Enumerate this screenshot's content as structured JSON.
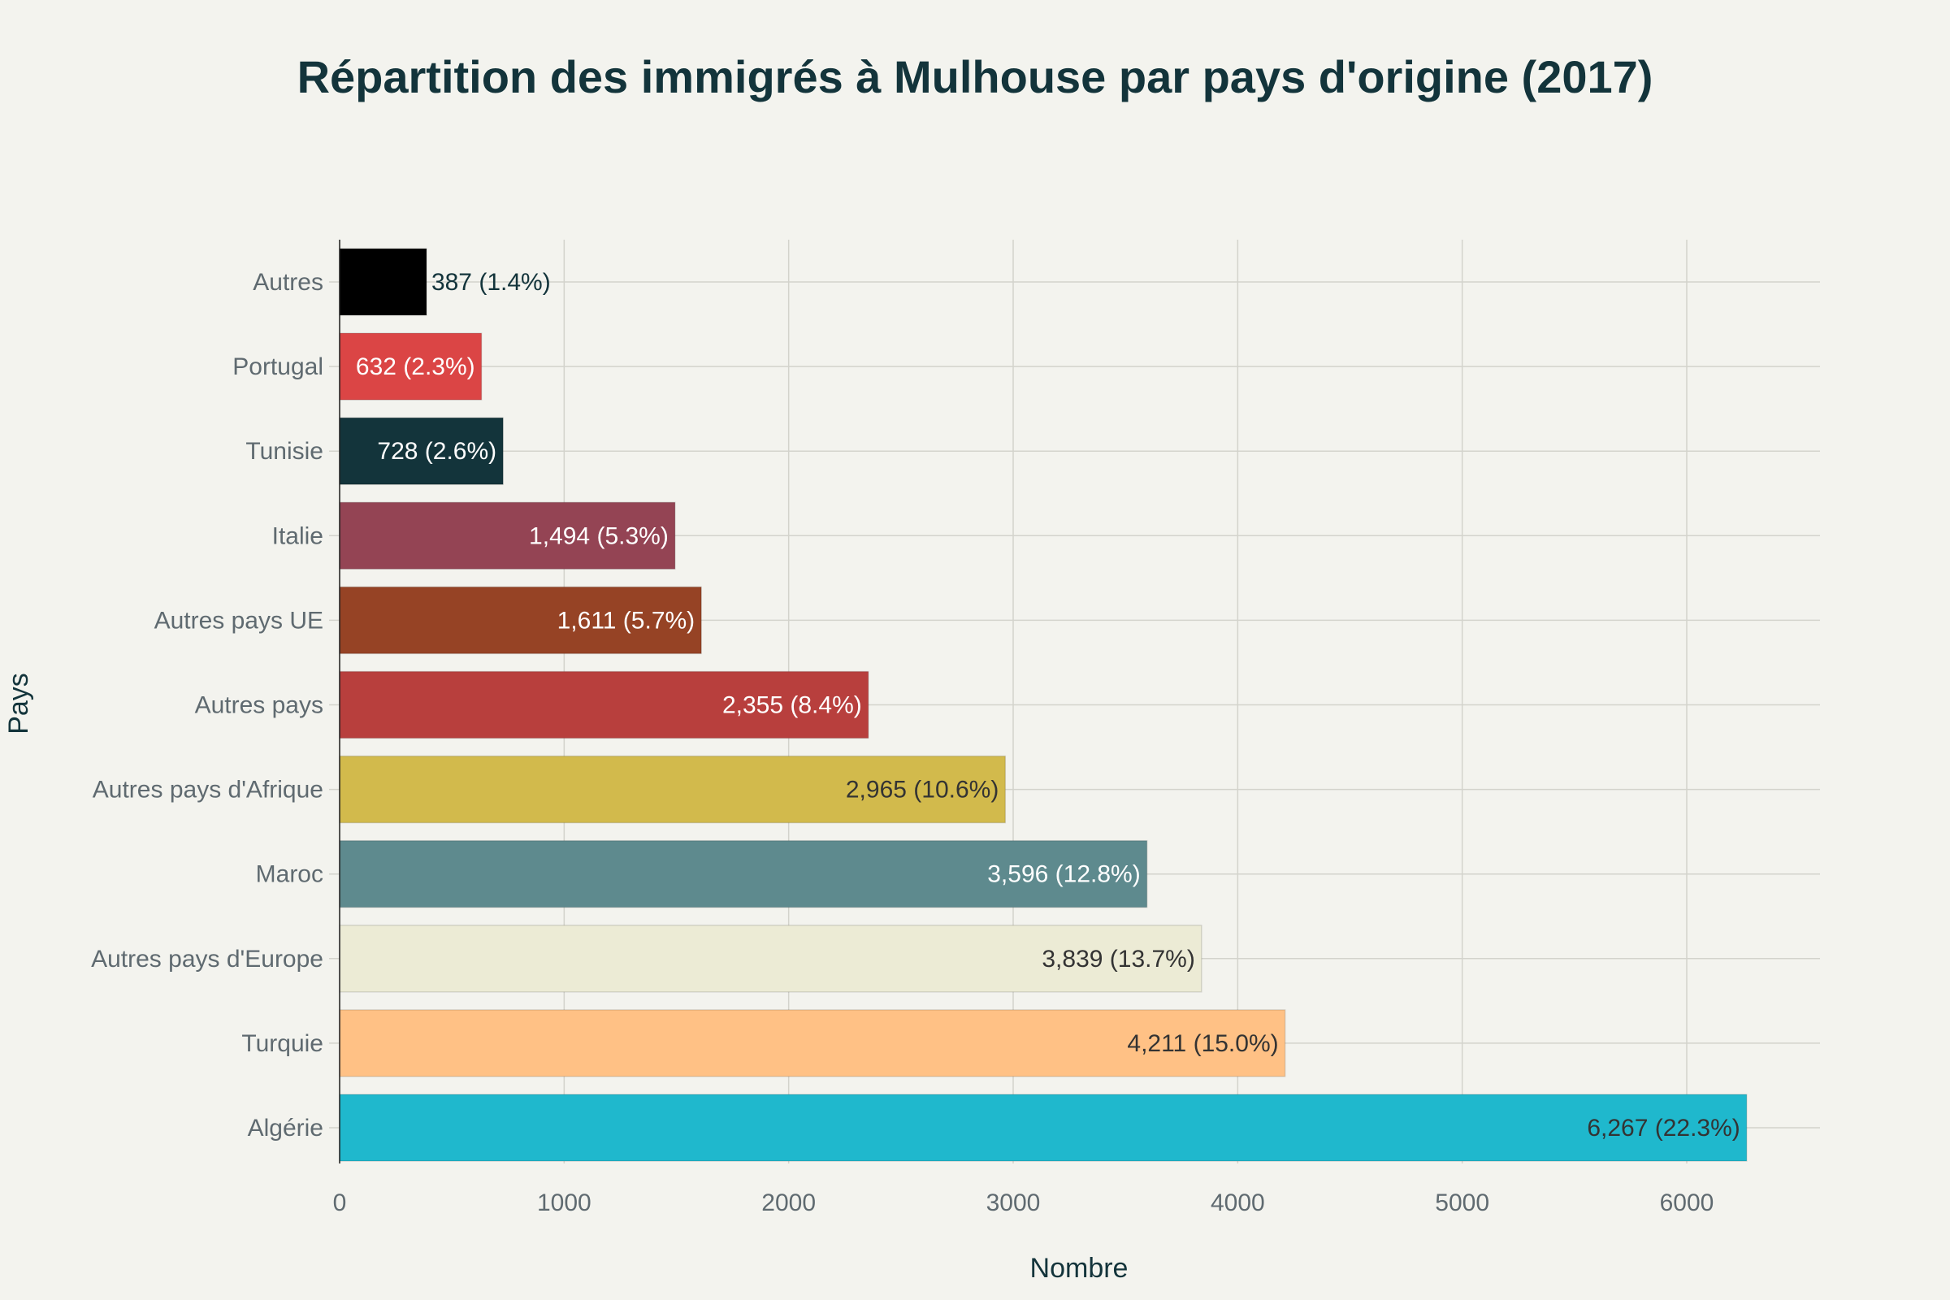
{
  "chart_data": {
    "type": "bar",
    "orientation": "horizontal",
    "title": "Répartition des immigrés à Mulhouse par pays d'origine (2017)",
    "xlabel": "Nombre",
    "ylabel": "Pays",
    "xlim": [
      0,
      6580
    ],
    "xticks": [
      0,
      1000,
      2000,
      3000,
      4000,
      5000,
      6000
    ],
    "grid": true,
    "categories": [
      "Autres",
      "Portugal",
      "Tunisie",
      "Italie",
      "Autres pays UE",
      "Autres pays",
      "Autres pays d'Afrique",
      "Maroc",
      "Autres pays d'Europe",
      "Turquie",
      "Algérie"
    ],
    "values": [
      387,
      632,
      728,
      1494,
      1611,
      2355,
      2965,
      3596,
      3839,
      4211,
      6267
    ],
    "labels": [
      "387 (1.4%)",
      "632 (2.3%)",
      "728 (2.6%)",
      "1,494 (5.3%)",
      "1,611 (5.7%)",
      "2,355 (8.4%)",
      "2,965 (10.6%)",
      "3,596 (12.8%)",
      "3,839 (13.7%)",
      "4,211 (15.0%)",
      "6,267 (22.3%)"
    ],
    "colors": [
      "#000000",
      "#db4545",
      "#13343b",
      "#944454",
      "#964325",
      "#b83f3d",
      "#d2ba4c",
      "#5e8a8e",
      "#ecebd5",
      "#ffc185",
      "#1fb8cd"
    ],
    "label_colors": [
      "#13343b",
      "#ffffff",
      "#ffffff",
      "#ffffff",
      "#ffffff",
      "#ffffff",
      "#333333",
      "#ffffff",
      "#333333",
      "#333333",
      "#333333"
    ]
  }
}
